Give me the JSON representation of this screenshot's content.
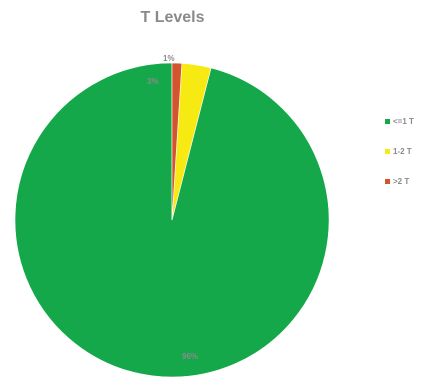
{
  "chart_data": {
    "type": "pie",
    "title": "T Levels",
    "slices": [
      {
        "name": "<=1 T",
        "value": 96,
        "label": "96%",
        "color": "#14a84a"
      },
      {
        "name": "1-2 T",
        "value": 3,
        "label": "3%",
        "color": "#f7ea13"
      },
      {
        "name": ">2 T",
        "value": 1,
        "label": "1%",
        "color": "#d4542e"
      }
    ],
    "legend_position": "right",
    "start_angle": "12 o'clock, counterclockwise"
  }
}
